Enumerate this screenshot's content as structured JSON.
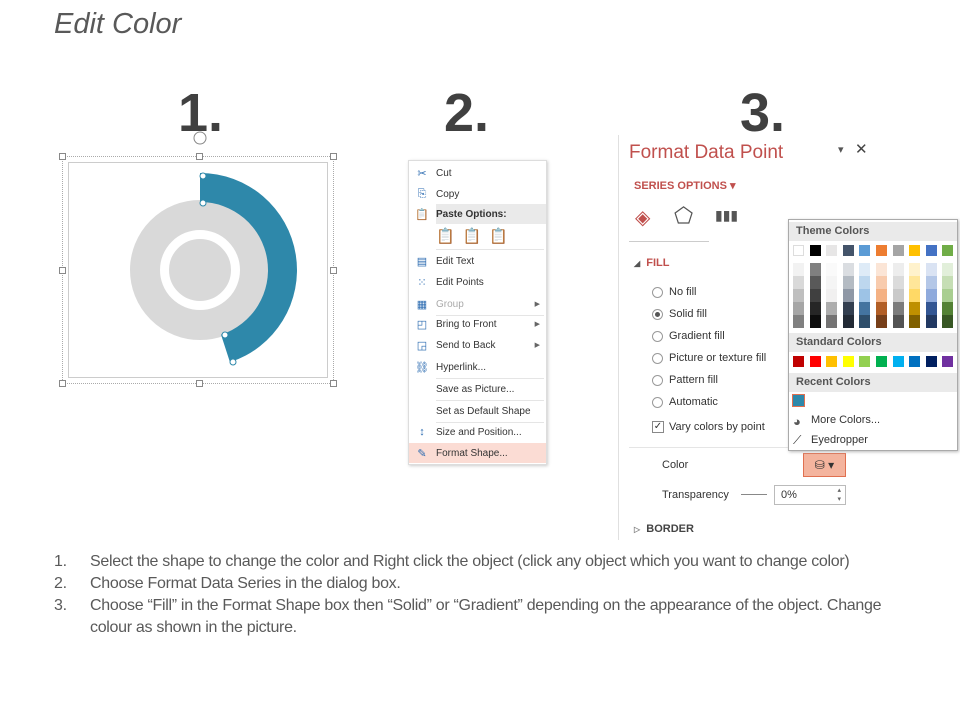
{
  "title": "Edit Color",
  "step_numbers": [
    "1.",
    "2.",
    "3."
  ],
  "donut": {
    "highlight_color": "#2e88aa",
    "ring_color": "#d9d9d9",
    "highlight_fraction": 0.45
  },
  "context_menu": {
    "items": [
      {
        "label": "Cut",
        "icon": "scissors-icon"
      },
      {
        "label": "Copy",
        "icon": "copy-icon"
      },
      {
        "label": "Paste Options:",
        "icon": "paste-icon",
        "header": true
      },
      {
        "label": "Edit Text",
        "icon": "edit-text-icon"
      },
      {
        "label": "Edit Points",
        "icon": "edit-points-icon"
      },
      {
        "label": "Group",
        "icon": "group-icon",
        "disabled": true,
        "submenu": true
      },
      {
        "label": "Bring to Front",
        "icon": "bring-to-front-icon",
        "submenu": true
      },
      {
        "label": "Send to Back",
        "icon": "send-to-back-icon",
        "submenu": true
      },
      {
        "label": "Hyperlink...",
        "icon": "hyperlink-icon"
      },
      {
        "label": "Save as Picture...",
        "icon": ""
      },
      {
        "label": "Set as Default Shape",
        "icon": ""
      },
      {
        "label": "Size and Position...",
        "icon": "size-position-icon"
      },
      {
        "label": "Format Shape...",
        "icon": "format-shape-icon",
        "highlighted": true
      }
    ]
  },
  "format_panel": {
    "title": "Format Data Point",
    "series_options": "SERIES OPTIONS",
    "fill_header": "FILL",
    "fill_options": [
      "No fill",
      "Solid fill",
      "Gradient fill",
      "Picture or texture fill",
      "Pattern fill",
      "Automatic"
    ],
    "selected_fill": "Solid fill",
    "vary_colors": "Vary colors by point",
    "color_label": "Color",
    "transparency_label": "Transparency",
    "transparency_value": "0%",
    "border_header": "BORDER",
    "accent": "#c0504d"
  },
  "color_popup": {
    "theme_label": "Theme Colors",
    "theme_colors": [
      "#ffffff",
      "#000000",
      "#e7e6e6",
      "#44546a",
      "#5b9bd5",
      "#ed7d31",
      "#a5a5a5",
      "#ffc000",
      "#4472c4",
      "#70ad47"
    ],
    "standard_label": "Standard Colors",
    "standard_colors": [
      "#c00000",
      "#ff0000",
      "#ffc000",
      "#ffff00",
      "#92d050",
      "#00b050",
      "#00b0f0",
      "#0070c0",
      "#002060",
      "#7030a0"
    ],
    "recent_label": "Recent Colors",
    "recent_colors": [
      "#2e88aa"
    ],
    "more_colors": "More Colors...",
    "eyedropper": "Eyedropper"
  },
  "steps": [
    {
      "n": "1.",
      "text": "Select the shape to change the color and Right click the object (click any object which you want to change color)"
    },
    {
      "n": "2.",
      "text": "Choose Format Data Series in the dialog box."
    },
    {
      "n": "3.",
      "text": "Choose “Fill” in the Format Shape box then “Solid” or “Gradient” depending on the appearance of the object. Change colour as shown in the picture."
    }
  ]
}
